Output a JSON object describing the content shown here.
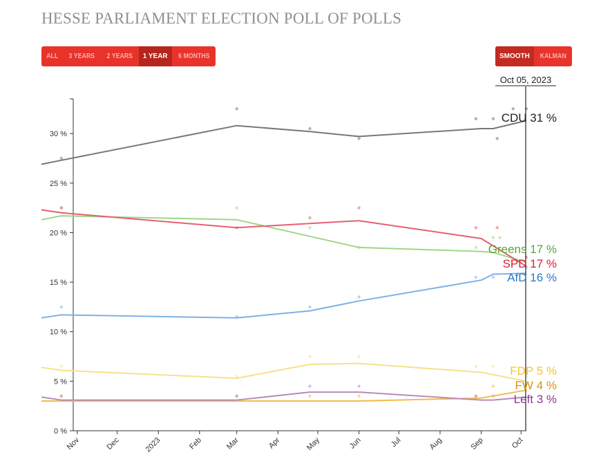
{
  "header": {
    "title": "HESSE PARLIAMENT ELECTION POLL OF POLLS"
  },
  "range_buttons": [
    {
      "label": "ALL",
      "active": false
    },
    {
      "label": "3 YEARS",
      "active": false
    },
    {
      "label": "2 YEARS",
      "active": false
    },
    {
      "label": "1 YEAR",
      "active": true
    },
    {
      "label": "6 MONTHS",
      "active": false
    }
  ],
  "method_buttons": [
    {
      "label": "SMOOTH",
      "active": true
    },
    {
      "label": "KALMAN",
      "active": false
    }
  ],
  "accent_color": "#e8332b",
  "chart_data": {
    "type": "line",
    "title": "HESSE PARLIAMENT ELECTION POLL OF POLLS",
    "cursor_date": "Oct 05, 2023",
    "x_ticks": [
      "Nov",
      "Dec",
      "2023",
      "Feb",
      "Mar",
      "Apr",
      "May",
      "Jun",
      "Jul",
      "Aug",
      "Sep",
      "Oct"
    ],
    "x_range": [
      "2022-10-05",
      "2023-10-05"
    ],
    "y_ticks": [
      "0 %",
      "5 %",
      "10 %",
      "15 %",
      "20 %",
      "25 %",
      "30 %"
    ],
    "ylim": [
      0,
      33.5
    ],
    "grid": false,
    "series": [
      {
        "name": "CDU",
        "label": "CDU",
        "value_label": "31 %",
        "color": "#777777",
        "label_color": "#222222",
        "x": [
          "2022-10-05",
          "2022-10-20",
          "2023-03-01",
          "2023-04-25",
          "2023-06-01",
          "2023-09-01",
          "2023-09-10",
          "2023-10-05"
        ],
        "y": [
          26.9,
          27.3,
          30.8,
          30.2,
          29.7,
          30.5,
          30.5,
          31.3
        ],
        "polls_x": [
          "2022-10-20",
          "2023-03-01",
          "2023-04-25",
          "2023-06-01",
          "2023-08-28",
          "2023-09-10",
          "2023-09-13",
          "2023-09-25",
          "2023-10-05"
        ],
        "polls_y": [
          27.5,
          32.5,
          30.5,
          29.5,
          31.5,
          31.5,
          29.5,
          32.5,
          32.5
        ]
      },
      {
        "name": "Greens",
        "label": "Greens",
        "value_label": "17 %",
        "color": "#9fd686",
        "label_color": "#5aa535",
        "x": [
          "2022-10-05",
          "2022-10-20",
          "2023-03-01",
          "2023-06-01",
          "2023-09-01",
          "2023-09-10",
          "2023-10-05"
        ],
        "y": [
          21.3,
          21.7,
          21.3,
          18.5,
          18.1,
          18.0,
          17.0
        ],
        "polls_x": [
          "2022-10-20",
          "2023-03-01",
          "2023-04-25",
          "2023-06-01",
          "2023-08-28",
          "2023-09-10",
          "2023-09-15"
        ],
        "polls_y": [
          22.5,
          22.5,
          20.5,
          18.5,
          18.5,
          19.5,
          19.5
        ]
      },
      {
        "name": "SPD",
        "label": "SPD",
        "value_label": "17 %",
        "color": "#e85d72",
        "label_color": "#d6203c",
        "x": [
          "2022-10-05",
          "2022-10-20",
          "2023-03-01",
          "2023-06-01",
          "2023-09-01",
          "2023-10-05"
        ],
        "y": [
          22.3,
          22.0,
          20.5,
          21.2,
          19.4,
          16.6
        ],
        "polls_x": [
          "2022-10-20",
          "2023-03-01",
          "2023-04-25",
          "2023-06-01",
          "2023-08-28",
          "2023-09-13",
          "2023-10-05"
        ],
        "polls_y": [
          22.5,
          20.5,
          21.5,
          22.5,
          20.5,
          20.5,
          17.5
        ]
      },
      {
        "name": "AfD",
        "label": "AfD",
        "value_label": "16 %",
        "color": "#7fb0e5",
        "label_color": "#2a7acb",
        "x": [
          "2022-10-05",
          "2022-10-20",
          "2023-03-01",
          "2023-04-25",
          "2023-06-01",
          "2023-09-01",
          "2023-09-10",
          "2023-10-05"
        ],
        "y": [
          11.4,
          11.7,
          11.4,
          12.1,
          13.1,
          15.2,
          15.8,
          15.9
        ],
        "polls_x": [
          "2022-10-20",
          "2023-03-01",
          "2023-04-25",
          "2023-06-01",
          "2023-08-28",
          "2023-09-10",
          "2023-10-05"
        ],
        "polls_y": [
          12.5,
          11.5,
          12.5,
          13.5,
          15.5,
          15.5,
          16.5
        ]
      },
      {
        "name": "FDP",
        "label": "FDP",
        "value_label": "5 %",
        "color": "#f7e08c",
        "label_color": "#f4c430",
        "x": [
          "2022-10-05",
          "2022-10-20",
          "2023-03-01",
          "2023-04-25",
          "2023-06-01",
          "2023-09-01",
          "2023-10-05"
        ],
        "y": [
          6.4,
          6.1,
          5.3,
          6.7,
          6.8,
          5.9,
          5.0
        ],
        "polls_x": [
          "2022-10-20",
          "2023-03-01",
          "2023-04-25",
          "2023-06-01",
          "2023-08-28",
          "2023-09-10",
          "2023-10-05"
        ],
        "polls_y": [
          6.5,
          5.5,
          7.5,
          7.5,
          6.5,
          6.5,
          5.5
        ]
      },
      {
        "name": "FW",
        "label": "FW",
        "value_label": "4 %",
        "color": "#f5b94d",
        "label_color": "#d69410",
        "x": [
          "2022-10-05",
          "2022-10-20",
          "2023-03-01",
          "2023-06-01",
          "2023-09-01",
          "2023-10-05"
        ],
        "y": [
          3.0,
          3.0,
          3.0,
          3.0,
          3.3,
          4.1
        ],
        "polls_x": [
          "2022-10-20",
          "2023-03-01",
          "2023-04-25",
          "2023-06-01",
          "2023-08-28",
          "2023-09-10"
        ],
        "polls_y": [
          3.5,
          3.5,
          3.5,
          3.5,
          3.5,
          4.5
        ]
      },
      {
        "name": "Left",
        "label": "Left",
        "value_label": "3 %",
        "color": "#b98abb",
        "label_color": "#8a3a8e",
        "x": [
          "2022-10-05",
          "2022-10-20",
          "2023-03-01",
          "2023-04-25",
          "2023-06-01",
          "2023-09-01",
          "2023-09-10",
          "2023-10-05"
        ],
        "y": [
          3.4,
          3.1,
          3.1,
          3.9,
          3.9,
          3.1,
          3.1,
          3.4
        ],
        "polls_x": [
          "2022-10-20",
          "2023-03-01",
          "2023-04-25",
          "2023-06-01",
          "2023-08-28",
          "2023-09-10"
        ],
        "polls_y": [
          3.5,
          3.5,
          4.5,
          4.5,
          3.5,
          3.5
        ]
      }
    ]
  }
}
